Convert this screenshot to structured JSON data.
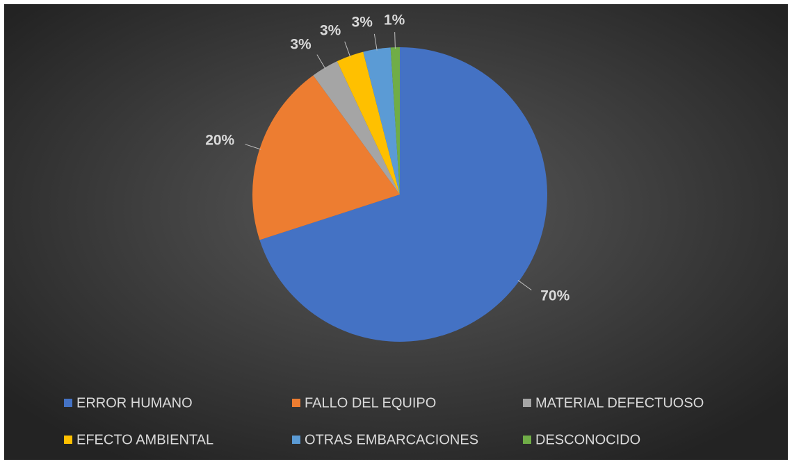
{
  "chart_data": {
    "type": "pie",
    "categories": [
      "ERROR HUMANO",
      "FALLO DEL EQUIPO",
      "MATERIAL DEFECTUOSO",
      "EFECTO AMBIENTAL",
      "OTRAS EMBARCACIONES",
      "DESCONOCIDO"
    ],
    "values": [
      70,
      20,
      3,
      3,
      3,
      1
    ],
    "value_labels": [
      "70%",
      "20%",
      "3%",
      "3%",
      "3%",
      "1%"
    ],
    "colors": [
      "#4472c4",
      "#ed7d31",
      "#a5a5a5",
      "#ffc000",
      "#5b9bd5",
      "#70ad47"
    ],
    "legend": "bottom"
  }
}
